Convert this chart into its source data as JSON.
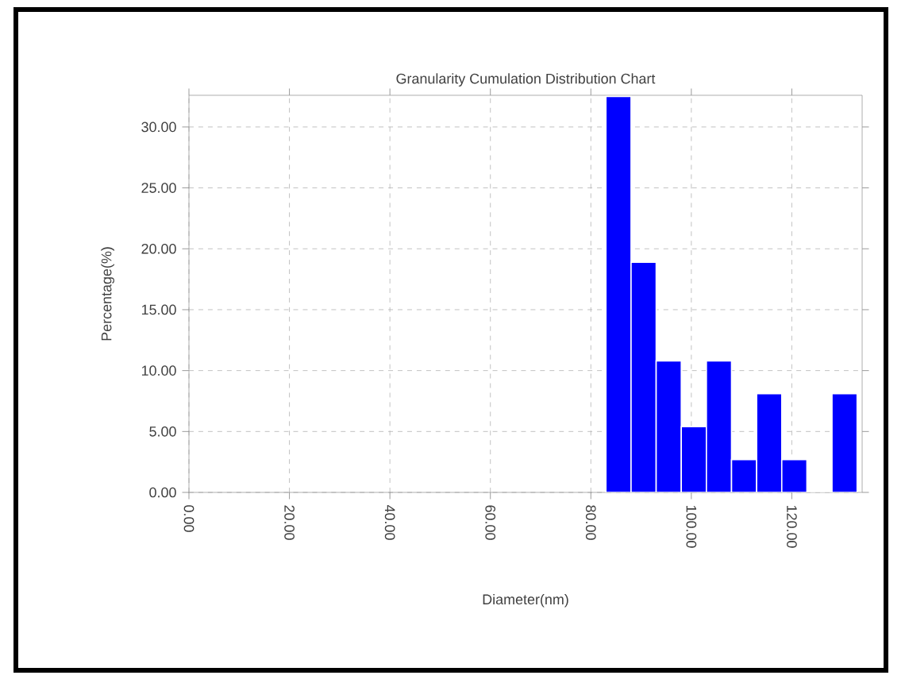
{
  "chart_data": {
    "type": "histogram",
    "title": "Granularity Cumulation Distribution  Chart",
    "xlabel": "Diameter(nm)",
    "ylabel": "Percentage(%)",
    "bins": [
      83,
      88,
      93,
      98,
      103,
      108,
      113,
      118,
      123,
      128,
      133
    ],
    "values": [
      32.5,
      18.9,
      10.8,
      5.4,
      10.8,
      2.7,
      8.1,
      2.7,
      0,
      8.1
    ],
    "color": "#0000ff",
    "xlim": [
      0,
      134
    ],
    "ylim": [
      0,
      32.6
    ],
    "xticks": [
      {
        "value": 0,
        "label": "0.00"
      },
      {
        "value": 20,
        "label": "20.00"
      },
      {
        "value": 40,
        "label": "40.00"
      },
      {
        "value": 60,
        "label": "60.00"
      },
      {
        "value": 80,
        "label": "80.00"
      },
      {
        "value": 100,
        "label": "100.00"
      },
      {
        "value": 120,
        "label": "120.00"
      }
    ],
    "yticks": [
      {
        "value": 0,
        "label": "0.00"
      },
      {
        "value": 5,
        "label": "5.00"
      },
      {
        "value": 10,
        "label": "10.00"
      },
      {
        "value": 15,
        "label": "15.00"
      },
      {
        "value": 20,
        "label": "20.00"
      },
      {
        "value": 25,
        "label": "25.00"
      },
      {
        "value": 30,
        "label": "30.00"
      }
    ],
    "grid": true
  }
}
